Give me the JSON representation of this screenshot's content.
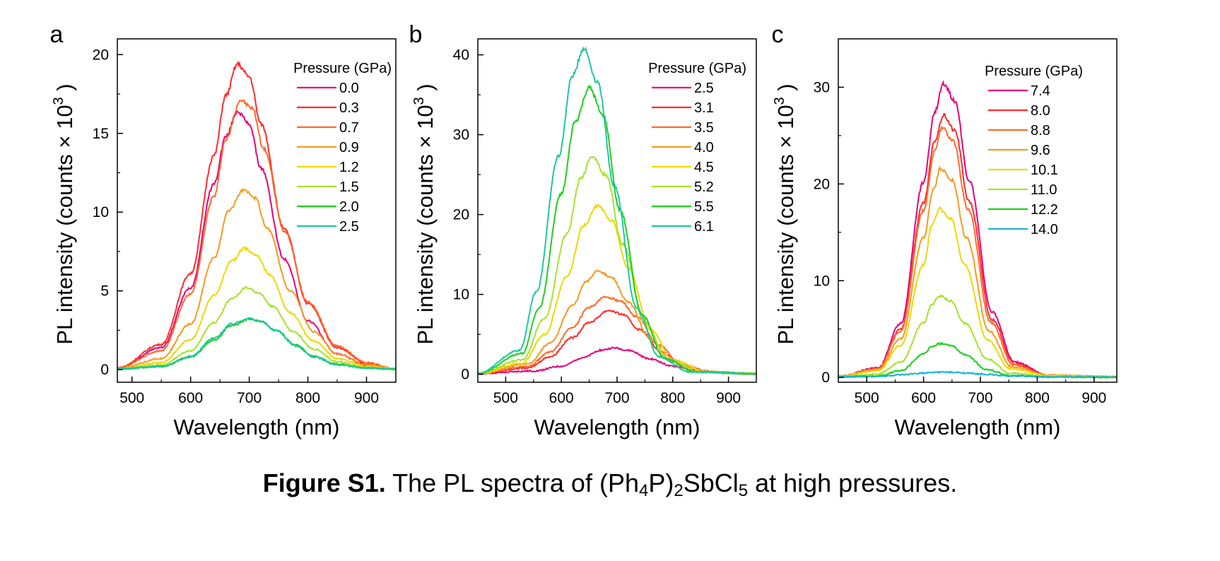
{
  "chart_data": [
    {
      "type": "line",
      "panel_label": "a",
      "xlabel": "Wavelength (nm)",
      "ylabel_main": "PL intensity (counts",
      "ylabel_times": "×",
      "ylabel_base": "10",
      "ylabel_exp": "3",
      "ylabel_close": ")",
      "xlim": [
        475,
        950
      ],
      "ylim": [
        -0.8,
        21
      ],
      "xticks": [
        500,
        600,
        700,
        800,
        900
      ],
      "yticks": [
        0,
        5,
        10,
        15,
        20
      ],
      "legend_title": "Pressure (GPa)",
      "legend_position": "top-right",
      "series": [
        {
          "name": "0.0",
          "color": "#e6007e",
          "peak_x": [
            475,
            550,
            600,
            640,
            660,
            680,
            700,
            720,
            760,
            800,
            850,
            900,
            950
          ],
          "peak_y": [
            0.1,
            1.4,
            5.2,
            11.8,
            14.8,
            16.4,
            15.6,
            12.8,
            7.0,
            3.1,
            1.0,
            0.3,
            0.05
          ]
        },
        {
          "name": "0.3",
          "color": "#ff2a2a",
          "peak_x": [
            475,
            550,
            600,
            640,
            660,
            680,
            700,
            720,
            760,
            800,
            850,
            900,
            950
          ],
          "peak_y": [
            0.1,
            1.6,
            6.1,
            13.6,
            17.4,
            19.4,
            18.6,
            15.6,
            8.9,
            4.2,
            1.4,
            0.4,
            0.05
          ]
        },
        {
          "name": "0.7",
          "color": "#ff6a2a",
          "peak_x": [
            475,
            550,
            600,
            640,
            660,
            685,
            705,
            725,
            760,
            800,
            850,
            900,
            950
          ],
          "peak_y": [
            0.1,
            1.2,
            4.8,
            11.0,
            14.6,
            17.1,
            16.6,
            14.0,
            8.8,
            4.3,
            1.5,
            0.45,
            0.05
          ]
        },
        {
          "name": "0.9",
          "color": "#f59a20",
          "peak_x": [
            475,
            550,
            600,
            640,
            665,
            690,
            710,
            730,
            770,
            810,
            850,
            900,
            950
          ],
          "peak_y": [
            0.05,
            0.7,
            2.9,
            7.1,
            10.1,
            11.4,
            10.9,
            9.0,
            5.0,
            2.4,
            1.0,
            0.3,
            0.05
          ]
        },
        {
          "name": "1.2",
          "color": "#ecd900",
          "peak_x": [
            475,
            550,
            600,
            640,
            670,
            692,
            712,
            735,
            770,
            810,
            850,
            900,
            950
          ],
          "peak_y": [
            0.05,
            0.45,
            1.9,
            4.7,
            6.9,
            7.7,
            7.3,
            6.0,
            3.6,
            1.8,
            0.7,
            0.2,
            0.05
          ]
        },
        {
          "name": "1.5",
          "color": "#a6e22e",
          "peak_x": [
            475,
            550,
            600,
            640,
            670,
            695,
            715,
            740,
            775,
            810,
            850,
            900,
            950
          ],
          "peak_y": [
            0.05,
            0.3,
            1.2,
            3.0,
            4.5,
            5.2,
            4.9,
            4.0,
            2.4,
            1.3,
            0.5,
            0.15,
            0.05
          ]
        },
        {
          "name": "2.0",
          "color": "#1ecf1e",
          "peak_x": [
            475,
            550,
            600,
            640,
            670,
            700,
            720,
            745,
            780,
            810,
            850,
            900,
            950
          ],
          "peak_y": [
            0.05,
            0.2,
            0.8,
            1.9,
            2.8,
            3.2,
            3.05,
            2.5,
            1.55,
            0.85,
            0.35,
            0.1,
            0.03
          ]
        },
        {
          "name": "2.5",
          "color": "#1ec8a0",
          "peak_x": [
            475,
            550,
            600,
            640,
            670,
            698,
            718,
            745,
            780,
            810,
            850,
            900,
            950
          ],
          "peak_y": [
            0.05,
            0.2,
            0.85,
            2.0,
            2.9,
            3.25,
            3.1,
            2.5,
            1.5,
            0.8,
            0.3,
            0.1,
            0.03
          ]
        }
      ]
    },
    {
      "type": "line",
      "panel_label": "b",
      "xlabel": "Wavelength (nm)",
      "ylabel_main": "PL intensity (counts",
      "ylabel_times": "×",
      "ylabel_base": "10",
      "ylabel_exp": "3",
      "ylabel_close": ")",
      "xlim": [
        450,
        950
      ],
      "ylim": [
        -1,
        42
      ],
      "xticks": [
        500,
        600,
        700,
        800,
        900
      ],
      "yticks": [
        0,
        10,
        20,
        30,
        40
      ],
      "legend_title": "Pressure (GPa)",
      "legend_position": "top-right",
      "series": [
        {
          "name": "2.5",
          "color": "#e6007e",
          "peak_x": [
            450,
            550,
            600,
            640,
            670,
            695,
            720,
            760,
            800,
            850,
            900,
            950
          ],
          "peak_y": [
            0.1,
            0.4,
            1.0,
            2.1,
            3.0,
            3.3,
            3.0,
            1.9,
            1.0,
            0.4,
            0.15,
            0.05
          ]
        },
        {
          "name": "3.1",
          "color": "#ff2a2a",
          "peak_x": [
            450,
            540,
            580,
            620,
            650,
            685,
            710,
            740,
            780,
            820,
            870,
            950
          ],
          "peak_y": [
            0.1,
            0.8,
            2.2,
            4.6,
            6.5,
            8.0,
            7.5,
            5.6,
            2.8,
            1.0,
            0.3,
            0.05
          ]
        },
        {
          "name": "3.5",
          "color": "#ff6a2a",
          "peak_x": [
            450,
            540,
            580,
            620,
            650,
            680,
            705,
            735,
            775,
            815,
            870,
            950
          ],
          "peak_y": [
            0.1,
            1.0,
            2.8,
            5.9,
            8.4,
            9.7,
            9.2,
            7.2,
            3.6,
            1.2,
            0.3,
            0.05
          ]
        },
        {
          "name": "4.0",
          "color": "#f59a20",
          "peak_x": [
            450,
            540,
            580,
            620,
            645,
            665,
            690,
            720,
            760,
            800,
            860,
            950
          ],
          "peak_y": [
            0.1,
            1.3,
            3.9,
            8.6,
            11.6,
            13.0,
            12.1,
            9.0,
            4.4,
            1.5,
            0.3,
            0.05
          ]
        },
        {
          "name": "4.5",
          "color": "#ecd900",
          "peak_x": [
            450,
            530,
            570,
            610,
            640,
            665,
            690,
            720,
            760,
            800,
            860,
            950
          ],
          "peak_y": [
            0.1,
            1.4,
            5.0,
            12.2,
            18.6,
            21.1,
            19.3,
            13.3,
            5.6,
            1.8,
            0.3,
            0.05
          ]
        },
        {
          "name": "5.2",
          "color": "#a6e22e",
          "peak_x": [
            450,
            530,
            570,
            610,
            635,
            655,
            680,
            710,
            750,
            790,
            850,
            950
          ],
          "peak_y": [
            0.1,
            1.8,
            7.0,
            17.6,
            24.6,
            27.3,
            24.9,
            16.3,
            6.5,
            1.9,
            0.3,
            0.05
          ]
        },
        {
          "name": "5.5",
          "color": "#1ecf1e",
          "peak_x": [
            450,
            530,
            560,
            600,
            625,
            650,
            675,
            705,
            745,
            785,
            840,
            950
          ],
          "peak_y": [
            0.1,
            2.6,
            8.3,
            22.6,
            31.7,
            35.9,
            32.4,
            20.6,
            7.4,
            2.0,
            0.3,
            0.05
          ]
        },
        {
          "name": "6.1",
          "color": "#1ec8a0",
          "peak_x": [
            450,
            525,
            555,
            595,
            620,
            640,
            665,
            695,
            735,
            775,
            830,
            950
          ],
          "peak_y": [
            0.1,
            3.0,
            10.3,
            27.3,
            37.4,
            40.8,
            36.6,
            23.6,
            8.3,
            2.2,
            0.3,
            0.05
          ]
        }
      ]
    },
    {
      "type": "line",
      "panel_label": "c",
      "xlabel": "Wavelength (nm)",
      "ylabel_main": "PL intensity (counts",
      "ylabel_times": "×",
      "ylabel_base": "10",
      "ylabel_exp": "3",
      "ylabel_close": ")",
      "xlim": [
        450,
        940
      ],
      "ylim": [
        -0.5,
        35
      ],
      "xticks": [
        500,
        600,
        700,
        800,
        900
      ],
      "yticks": [
        0,
        10,
        20,
        30
      ],
      "legend_title": "Pressure (GPa)",
      "legend_position": "top-right",
      "series": [
        {
          "name": "7.4",
          "color": "#e6007e",
          "peak_x": [
            450,
            520,
            560,
            600,
            620,
            635,
            655,
            680,
            720,
            760,
            820,
            940
          ],
          "peak_y": [
            0.1,
            1.0,
            5.6,
            20.2,
            27.5,
            30.4,
            28.6,
            20.4,
            6.8,
            1.6,
            0.2,
            0.05
          ]
        },
        {
          "name": "8.0",
          "color": "#ff2a2a",
          "peak_x": [
            450,
            520,
            560,
            600,
            620,
            635,
            655,
            680,
            720,
            760,
            820,
            940
          ],
          "peak_y": [
            0.1,
            0.9,
            5.0,
            18.0,
            24.5,
            27.1,
            25.5,
            18.2,
            6.0,
            1.4,
            0.2,
            0.05
          ]
        },
        {
          "name": "8.8",
          "color": "#ff6a2a",
          "peak_x": [
            450,
            520,
            560,
            600,
            620,
            632,
            652,
            678,
            718,
            758,
            820,
            940
          ],
          "peak_y": [
            0.1,
            0.9,
            4.8,
            17.2,
            23.4,
            25.8,
            24.4,
            17.4,
            5.7,
            1.3,
            0.2,
            0.05
          ]
        },
        {
          "name": "9.6",
          "color": "#f59a20",
          "peak_x": [
            450,
            520,
            560,
            600,
            618,
            630,
            650,
            675,
            715,
            755,
            820,
            940
          ],
          "peak_y": [
            0.1,
            0.8,
            4.0,
            14.4,
            19.6,
            21.6,
            20.4,
            14.5,
            4.8,
            1.1,
            0.2,
            0.05
          ]
        },
        {
          "name": "10.1",
          "color": "#ecd900",
          "peak_x": [
            450,
            520,
            560,
            600,
            615,
            628,
            648,
            672,
            712,
            752,
            820,
            940
          ],
          "peak_y": [
            0.1,
            0.7,
            3.3,
            11.6,
            15.8,
            17.4,
            16.4,
            11.7,
            3.9,
            0.9,
            0.2,
            0.05
          ]
        },
        {
          "name": "11.0",
          "color": "#a6e22e",
          "peak_x": [
            450,
            520,
            560,
            600,
            615,
            628,
            648,
            672,
            712,
            752,
            820,
            940
          ],
          "peak_y": [
            0.1,
            0.35,
            1.6,
            5.6,
            7.6,
            8.4,
            7.9,
            5.6,
            1.9,
            0.45,
            0.1,
            0.03
          ]
        },
        {
          "name": "12.2",
          "color": "#1ecf1e",
          "peak_x": [
            450,
            520,
            560,
            600,
            615,
            628,
            648,
            672,
            712,
            752,
            820,
            940
          ],
          "peak_y": [
            0.05,
            0.15,
            0.7,
            2.4,
            3.2,
            3.5,
            3.3,
            2.35,
            0.8,
            0.2,
            0.05,
            0.02
          ]
        },
        {
          "name": "14.0",
          "color": "#18b4d8",
          "peak_x": [
            450,
            520,
            560,
            600,
            630,
            660,
            700,
            750,
            820,
            940
          ],
          "peak_y": [
            0.05,
            0.1,
            0.25,
            0.45,
            0.55,
            0.5,
            0.35,
            0.15,
            0.05,
            0.02
          ]
        }
      ]
    }
  ],
  "caption": {
    "bold": "Figure S1.",
    "t1": " The PL spectra of (Ph",
    "s1": "4",
    "t2": "P)",
    "s2": "2",
    "t3": "SbCl",
    "s3": "5",
    "t4": " at high pressures."
  }
}
